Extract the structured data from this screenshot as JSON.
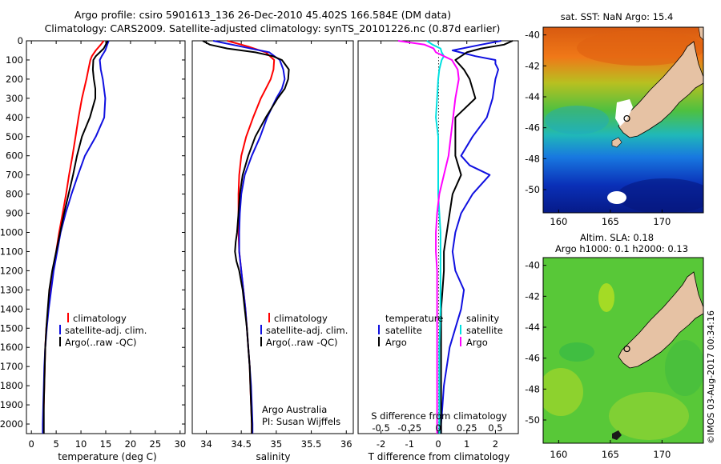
{
  "header": {
    "title_line1": "Argo profile: csiro 5901613_136 26-Dec-2010 45.402S 166.584E (DM data)",
    "title_line2": "Climatology: CARS2009. Satellite-adjusted climatology: synTS_20101226.nc (0.87d earlier)"
  },
  "watermark": "©IMOS 03-Aug-2017 00:34:16",
  "colors": {
    "climatology": "#ff0000",
    "satellite": "#1010e0",
    "argo": "#000000",
    "s_satellite": "#00e0e0",
    "s_argo": "#ff00ff",
    "land": "#e6c2a4"
  },
  "chart_data": [
    {
      "type": "line",
      "id": "temperature",
      "xlabel": "temperature (deg C)",
      "ylabel": "",
      "xlim": [
        -1,
        31
      ],
      "ylim": [
        2050,
        0
      ],
      "xticks": [
        0,
        5,
        10,
        15,
        20,
        25,
        30
      ],
      "yticks": [
        0,
        100,
        200,
        300,
        400,
        500,
        600,
        700,
        800,
        900,
        1000,
        1100,
        1200,
        1300,
        1400,
        1500,
        1600,
        1700,
        1800,
        1900,
        2000
      ],
      "legend": [
        "climatology",
        "satellite-adj. clim.",
        "Argo(..raw -QC)"
      ],
      "series": [
        {
          "name": "climatology",
          "color": "#ff0000",
          "y": [
            0,
            20,
            50,
            80,
            100,
            150,
            200,
            300,
            400,
            500,
            600,
            700,
            800,
            900,
            1000,
            1100,
            1200,
            1300,
            1400,
            1500,
            1600,
            1700,
            1800,
            1900,
            2000,
            2050
          ],
          "x": [
            14.6,
            14.0,
            13.0,
            12.2,
            11.9,
            11.5,
            11.1,
            10.2,
            9.5,
            8.9,
            8.3,
            7.6,
            7.0,
            6.3,
            5.6,
            5.0,
            4.4,
            3.8,
            3.4,
            3.0,
            2.8,
            2.7,
            2.6,
            2.5,
            2.4,
            2.4
          ]
        },
        {
          "name": "satellite-adj. clim.",
          "color": "#1010e0",
          "y": [
            0,
            20,
            50,
            80,
            100,
            150,
            200,
            300,
            400,
            500,
            600,
            700,
            800,
            900,
            1000,
            1100,
            1200,
            1300,
            1400,
            1500,
            1600,
            1700,
            1800,
            1900,
            2000,
            2050
          ],
          "x": [
            15.6,
            15.3,
            14.9,
            14.2,
            13.8,
            14.0,
            14.4,
            14.9,
            14.7,
            13.0,
            10.8,
            9.4,
            8.1,
            6.9,
            5.9,
            5.2,
            4.5,
            4.0,
            3.5,
            3.1,
            2.8,
            2.6,
            2.5,
            2.4,
            2.3,
            2.3
          ]
        },
        {
          "name": "Argo(..raw -QC)",
          "color": "#000000",
          "y": [
            0,
            20,
            40,
            60,
            80,
            100,
            150,
            200,
            250,
            300,
            400,
            500,
            600,
            700,
            800,
            900,
            1000,
            1100,
            1200,
            1300,
            1400,
            1500,
            1600,
            1700,
            1800,
            1900,
            2000,
            2050
          ],
          "x": [
            15.4,
            15.0,
            14.6,
            13.8,
            13.0,
            12.5,
            12.4,
            12.6,
            12.9,
            12.9,
            11.8,
            10.2,
            9.2,
            8.4,
            7.5,
            6.6,
            5.8,
            5.0,
            4.2,
            3.6,
            3.3,
            3.0,
            2.8,
            2.7,
            2.6,
            2.5,
            2.5,
            2.5
          ]
        }
      ]
    },
    {
      "type": "line",
      "id": "salinity",
      "xlabel": "salinity",
      "ylabel": "",
      "xlim": [
        33.8,
        36.1
      ],
      "ylim": [
        2050,
        0
      ],
      "xticks": [
        34,
        34.5,
        35,
        35.5,
        36
      ],
      "legend": [
        "climatology",
        "satellite-adj. clim.",
        "Argo(..raw -QC)"
      ],
      "annotation": [
        "Argo Australia",
        "PI: Susan Wijffels"
      ],
      "series": [
        {
          "name": "climatology",
          "color": "#ff0000",
          "y": [
            0,
            30,
            60,
            100,
            150,
            200,
            250,
            300,
            400,
            500,
            600,
            700,
            800,
            900,
            1000,
            1100,
            1200,
            1300,
            1400,
            1500,
            1600,
            1700,
            1800,
            1900,
            2000,
            2050
          ],
          "x": [
            34.3,
            34.6,
            34.85,
            34.97,
            34.96,
            34.92,
            34.85,
            34.78,
            34.67,
            34.57,
            34.5,
            34.47,
            34.46,
            34.46,
            34.46,
            34.47,
            34.5,
            34.53,
            34.56,
            34.58,
            34.6,
            34.62,
            34.63,
            34.64,
            34.65,
            34.65
          ]
        },
        {
          "name": "satellite-adj. clim.",
          "color": "#1010e0",
          "y": [
            0,
            30,
            60,
            100,
            150,
            200,
            250,
            300,
            400,
            500,
            600,
            700,
            800,
            900,
            1000,
            1100,
            1200,
            1300,
            1400,
            1500,
            1600,
            1700,
            1800,
            1900,
            2000,
            2050
          ],
          "x": [
            34.1,
            34.5,
            34.9,
            35.05,
            35.1,
            35.12,
            35.08,
            35.0,
            34.87,
            34.77,
            34.65,
            34.55,
            34.5,
            34.48,
            34.47,
            34.47,
            34.5,
            34.53,
            34.56,
            34.58,
            34.6,
            34.62,
            34.64,
            34.65,
            34.66,
            34.66
          ]
        },
        {
          "name": "Argo(..raw -QC)",
          "color": "#000000",
          "y": [
            0,
            20,
            40,
            60,
            80,
            100,
            150,
            200,
            250,
            300,
            400,
            500,
            600,
            700,
            800,
            900,
            1000,
            1050,
            1100,
            1150,
            1200,
            1300,
            1400,
            1500,
            1600,
            1700,
            1800,
            1900,
            2000,
            2050
          ],
          "x": [
            33.95,
            34.05,
            34.3,
            34.7,
            34.95,
            35.08,
            35.18,
            35.17,
            35.12,
            35.02,
            34.85,
            34.7,
            34.6,
            34.52,
            34.48,
            34.46,
            34.44,
            34.42,
            34.41,
            34.43,
            34.47,
            34.52,
            34.55,
            34.58,
            34.6,
            34.62,
            34.63,
            34.64,
            34.65,
            34.65
          ]
        }
      ]
    },
    {
      "type": "line",
      "id": "differences",
      "xlabel": "T difference from climatology",
      "x2label": "S difference from climatology",
      "xlim": [
        -2.8,
        2.8
      ],
      "ylim": [
        2050,
        0
      ],
      "xticks": [
        -2,
        -1,
        0,
        1,
        2
      ],
      "x2ticks": [
        -0.5,
        -0.25,
        0,
        0.25,
        0.5
      ],
      "legend_left_title": "temperature",
      "legend_left": [
        "satellite",
        "Argo"
      ],
      "legend_right_title": "salinity",
      "legend_right": [
        "satellite",
        "Argo"
      ],
      "series": [
        {
          "name": "satellite",
          "group": "temperature",
          "color": "#1010e0",
          "y": [
            0,
            20,
            50,
            80,
            100,
            120,
            150,
            200,
            300,
            400,
            500,
            600,
            650,
            700,
            800,
            900,
            1000,
            1100,
            1200,
            1300,
            1400,
            1500,
            1600,
            1700,
            1800,
            1900,
            2000,
            2050
          ],
          "x": [
            2.2,
            1.5,
            0.5,
            1.3,
            2.0,
            2.0,
            2.1,
            2.0,
            1.9,
            1.7,
            1.2,
            0.8,
            1.1,
            1.8,
            1.2,
            0.8,
            0.6,
            0.5,
            0.6,
            0.9,
            0.8,
            0.6,
            0.4,
            0.3,
            0.2,
            0.15,
            0.1,
            0.1
          ]
        },
        {
          "name": "Argo",
          "group": "temperature",
          "color": "#000000",
          "y": [
            0,
            20,
            40,
            60,
            80,
            100,
            150,
            200,
            300,
            400,
            500,
            600,
            700,
            800,
            900,
            1000,
            1100,
            1200,
            1300,
            1400,
            1500,
            1600,
            1700,
            1800,
            1900,
            2000,
            2050
          ],
          "x": [
            2.6,
            2.3,
            1.5,
            1.0,
            0.8,
            0.6,
            0.9,
            1.1,
            1.3,
            0.6,
            0.6,
            0.6,
            0.8,
            0.5,
            0.4,
            0.3,
            0.2,
            0.2,
            0.15,
            0.1,
            0.1,
            0.1,
            0.1,
            0.1,
            0.1,
            0.1,
            0.1
          ]
        },
        {
          "name": "satellite",
          "group": "salinity",
          "color": "#00e0e0",
          "y": [
            0,
            20,
            40,
            60,
            80,
            100,
            150,
            200,
            300,
            400,
            500,
            600,
            800,
            1000,
            1200,
            1400,
            1600,
            1800,
            2000,
            2050
          ],
          "x": [
            -0.1,
            -0.05,
            0.02,
            0.03,
            0.05,
            0.03,
            0.01,
            0.0,
            -0.01,
            -0.02,
            0.0,
            0.0,
            0.0,
            0.02,
            0.02,
            0.02,
            0.01,
            0.01,
            0.01,
            0.01
          ]
        },
        {
          "name": "Argo",
          "group": "salinity",
          "color": "#ff00ff",
          "y": [
            0,
            20,
            40,
            60,
            80,
            100,
            150,
            200,
            300,
            400,
            500,
            600,
            700,
            800,
            900,
            1000,
            1100,
            1200,
            1300,
            1400,
            1600,
            1800,
            2000,
            2050
          ],
          "x": [
            -0.35,
            -0.12,
            -0.04,
            -0.02,
            0.05,
            0.12,
            0.17,
            0.18,
            0.15,
            0.13,
            0.11,
            0.09,
            0.05,
            0.01,
            -0.01,
            -0.02,
            -0.02,
            -0.01,
            -0.01,
            -0.01,
            -0.01,
            -0.01,
            -0.01,
            -0.01
          ]
        }
      ]
    },
    {
      "type": "heatmap",
      "id": "sst-map",
      "title": "sat. SST: NaN Argo: 15.4",
      "xlim": [
        158.5,
        174
      ],
      "ylim": [
        -51.5,
        -39.5
      ],
      "xticks": [
        160,
        165,
        170
      ],
      "yticks": [
        -40,
        -42,
        -44,
        -46,
        -48,
        -50
      ],
      "marker": [
        166.6,
        -45.4
      ]
    },
    {
      "type": "heatmap",
      "id": "sla-map",
      "title": "Altim. SLA: 0.18",
      "subtitle": "Argo h1000: 0.1 h2000: 0.13",
      "xlim": [
        158.5,
        174
      ],
      "ylim": [
        -51.5,
        -39.5
      ],
      "xticks": [
        160,
        165,
        170
      ],
      "yticks": [
        -40,
        -42,
        -44,
        -46,
        -48,
        -50
      ],
      "marker": [
        166.6,
        -45.4
      ]
    }
  ]
}
